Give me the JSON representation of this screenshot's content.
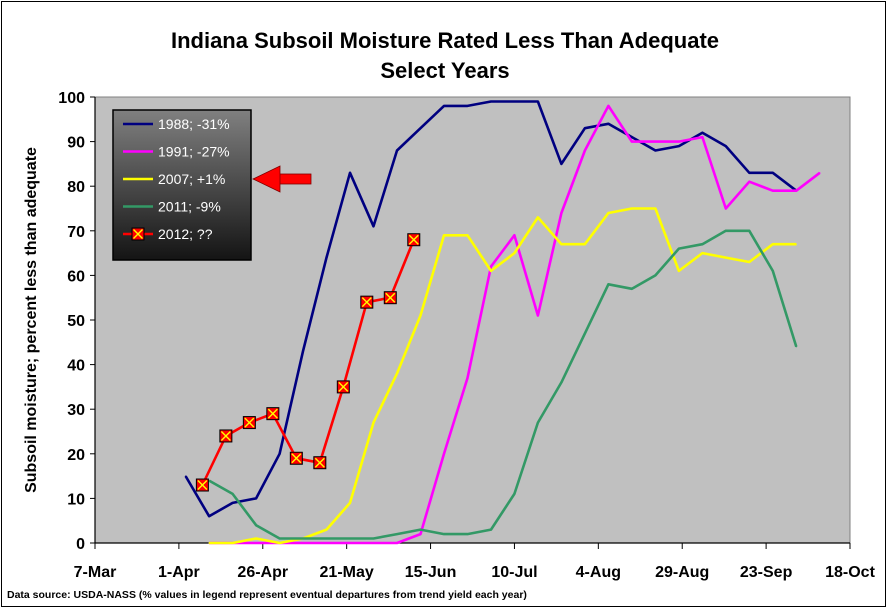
{
  "chart_data": {
    "type": "line",
    "title": "Indiana Subsoil Moisture Rated Less Than Adequate",
    "subtitle": "Select Years",
    "ylabel": "Subsoil moisture; percent less than adequate",
    "xlabel": "",
    "ylim": [
      0,
      100
    ],
    "yticks": [
      0,
      10,
      20,
      30,
      40,
      50,
      60,
      70,
      80,
      90,
      100
    ],
    "xlim": [
      "2000-03-07",
      "2000-10-18"
    ],
    "xticks": [
      "7-Mar",
      "1-Apr",
      "26-Apr",
      "21-May",
      "15-Jun",
      "10-Jul",
      "4-Aug",
      "29-Aug",
      "23-Sep",
      "18-Oct"
    ],
    "xtick_dates": [
      "2000-03-07",
      "2000-04-01",
      "2000-04-26",
      "2000-05-21",
      "2000-06-15",
      "2000-07-10",
      "2000-08-04",
      "2000-08-29",
      "2000-09-23",
      "2000-10-18"
    ],
    "plot_background": "#c0c0c0",
    "grid": false,
    "legend_position": "top-left",
    "source": "Data source: USDA-NASS (% values in legend represent eventual departures from trend yield each year)",
    "series": [
      {
        "name": "1988; -31%",
        "color": "#000080",
        "marker": "none",
        "points": [
          [
            "2000-04-03",
            15
          ],
          [
            "2000-04-10",
            6
          ],
          [
            "2000-04-17",
            9
          ],
          [
            "2000-04-24",
            10
          ],
          [
            "2000-05-01",
            20
          ],
          [
            "2000-05-08",
            43
          ],
          [
            "2000-05-15",
            64
          ],
          [
            "2000-05-22",
            83
          ],
          [
            "2000-05-29",
            71
          ],
          [
            "2000-06-05",
            88
          ],
          [
            "2000-06-12",
            93
          ],
          [
            "2000-06-19",
            98
          ],
          [
            "2000-06-26",
            98
          ],
          [
            "2000-07-03",
            99
          ],
          [
            "2000-07-10",
            99
          ],
          [
            "2000-07-17",
            99
          ],
          [
            "2000-07-24",
            85
          ],
          [
            "2000-07-31",
            93
          ],
          [
            "2000-08-07",
            94
          ],
          [
            "2000-08-14",
            91
          ],
          [
            "2000-08-21",
            88
          ],
          [
            "2000-08-28",
            89
          ],
          [
            "2000-09-04",
            92
          ],
          [
            "2000-09-11",
            89
          ],
          [
            "2000-09-18",
            83
          ],
          [
            "2000-09-25",
            83
          ],
          [
            "2000-10-02",
            79
          ]
        ]
      },
      {
        "name": "1991; -27%",
        "color": "#ff00ff",
        "marker": "none",
        "points": [
          [
            "2000-04-10",
            0
          ],
          [
            "2000-04-17",
            0
          ],
          [
            "2000-04-24",
            0
          ],
          [
            "2000-05-01",
            0
          ],
          [
            "2000-05-08",
            0
          ],
          [
            "2000-05-15",
            0
          ],
          [
            "2000-05-22",
            0
          ],
          [
            "2000-05-29",
            0
          ],
          [
            "2000-06-05",
            0
          ],
          [
            "2000-06-12",
            2
          ],
          [
            "2000-06-19",
            20
          ],
          [
            "2000-06-26",
            37
          ],
          [
            "2000-07-03",
            62
          ],
          [
            "2000-07-10",
            69
          ],
          [
            "2000-07-17",
            51
          ],
          [
            "2000-07-24",
            74
          ],
          [
            "2000-07-31",
            88
          ],
          [
            "2000-08-07",
            98
          ],
          [
            "2000-08-14",
            90
          ],
          [
            "2000-08-21",
            90
          ],
          [
            "2000-08-28",
            90
          ],
          [
            "2000-09-04",
            91
          ],
          [
            "2000-09-11",
            75
          ],
          [
            "2000-09-18",
            81
          ],
          [
            "2000-09-25",
            79
          ],
          [
            "2000-10-02",
            79
          ],
          [
            "2000-10-09",
            83
          ]
        ]
      },
      {
        "name": "2007; +1%",
        "color": "#ffff00",
        "marker": "none",
        "points": [
          [
            "2000-04-10",
            0
          ],
          [
            "2000-04-17",
            0
          ],
          [
            "2000-04-24",
            1
          ],
          [
            "2000-05-01",
            0
          ],
          [
            "2000-05-08",
            1
          ],
          [
            "2000-05-15",
            3
          ],
          [
            "2000-05-22",
            9
          ],
          [
            "2000-05-29",
            27
          ],
          [
            "2000-06-05",
            38
          ],
          [
            "2000-06-12",
            51
          ],
          [
            "2000-06-19",
            69
          ],
          [
            "2000-06-26",
            69
          ],
          [
            "2000-07-03",
            61
          ],
          [
            "2000-07-10",
            65
          ],
          [
            "2000-07-17",
            73
          ],
          [
            "2000-07-24",
            67
          ],
          [
            "2000-07-31",
            67
          ],
          [
            "2000-08-07",
            74
          ],
          [
            "2000-08-14",
            75
          ],
          [
            "2000-08-21",
            75
          ],
          [
            "2000-08-28",
            61
          ],
          [
            "2000-09-04",
            65
          ],
          [
            "2000-09-11",
            64
          ],
          [
            "2000-09-18",
            63
          ],
          [
            "2000-09-25",
            67
          ],
          [
            "2000-10-02",
            67
          ]
        ]
      },
      {
        "name": "2011; -9%",
        "color": "#339966",
        "marker": "none",
        "points": [
          [
            "2000-04-10",
            14
          ],
          [
            "2000-04-17",
            11
          ],
          [
            "2000-04-24",
            4
          ],
          [
            "2000-05-01",
            1
          ],
          [
            "2000-05-08",
            1
          ],
          [
            "2000-05-15",
            1
          ],
          [
            "2000-05-22",
            1
          ],
          [
            "2000-05-29",
            1
          ],
          [
            "2000-06-05",
            2
          ],
          [
            "2000-06-12",
            3
          ],
          [
            "2000-06-19",
            2
          ],
          [
            "2000-06-26",
            2
          ],
          [
            "2000-07-03",
            3
          ],
          [
            "2000-07-10",
            11
          ],
          [
            "2000-07-17",
            27
          ],
          [
            "2000-07-24",
            36
          ],
          [
            "2000-07-31",
            47
          ],
          [
            "2000-08-07",
            58
          ],
          [
            "2000-08-14",
            57
          ],
          [
            "2000-08-21",
            60
          ],
          [
            "2000-08-28",
            66
          ],
          [
            "2000-09-04",
            67
          ],
          [
            "2000-09-11",
            70
          ],
          [
            "2000-09-18",
            70
          ],
          [
            "2000-09-25",
            61
          ],
          [
            "2000-10-02",
            44
          ]
        ]
      },
      {
        "name": "2012; ??",
        "color": "#ff0000",
        "marker": "square-x",
        "points": [
          [
            "2000-04-08",
            13
          ],
          [
            "2000-04-15",
            24
          ],
          [
            "2000-04-22",
            27
          ],
          [
            "2000-04-29",
            29
          ],
          [
            "2000-05-06",
            19
          ],
          [
            "2000-05-13",
            18
          ],
          [
            "2000-05-20",
            35
          ],
          [
            "2000-05-27",
            54
          ],
          [
            "2000-06-03",
            55
          ],
          [
            "2000-06-10",
            68
          ]
        ]
      }
    ]
  }
}
